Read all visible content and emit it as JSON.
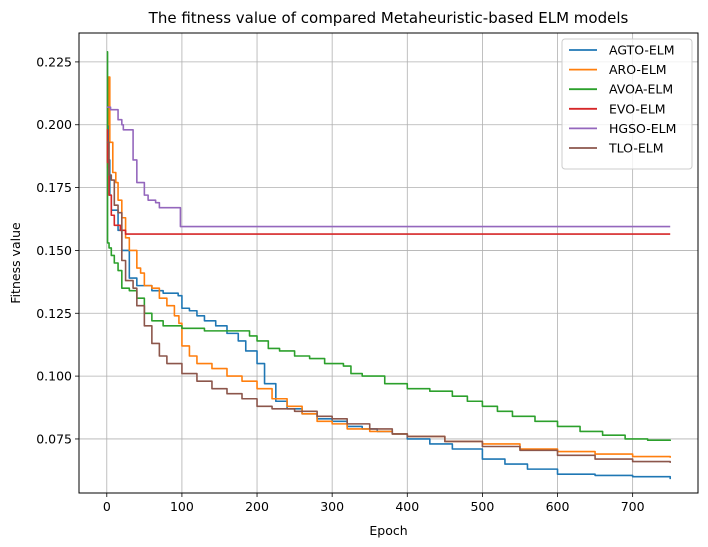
{
  "chart_data": {
    "type": "line",
    "title": "The fitness value of compared Metaheuristic-based ELM models",
    "xlabel": "Epoch",
    "ylabel": "Fitness value",
    "xlim": [
      -37,
      787
    ],
    "ylim": [
      0.0535,
      0.2365
    ],
    "xticks": [
      0,
      100,
      200,
      300,
      400,
      500,
      600,
      700
    ],
    "yticks": [
      0.075,
      0.1,
      0.125,
      0.15,
      0.175,
      0.2,
      0.225
    ],
    "ytick_labels": [
      "0.075",
      "0.100",
      "0.125",
      "0.150",
      "0.175",
      "0.200",
      "0.225"
    ],
    "grid": true,
    "legend_position": "upper right",
    "series": [
      {
        "name": "AGTO-ELM",
        "color": "#1f77b4",
        "points": [
          [
            0,
            0.2
          ],
          [
            2,
            0.186
          ],
          [
            4,
            0.172
          ],
          [
            6,
            0.166
          ],
          [
            12,
            0.166
          ],
          [
            15,
            0.158
          ],
          [
            20,
            0.15
          ],
          [
            30,
            0.139
          ],
          [
            40,
            0.136
          ],
          [
            60,
            0.134
          ],
          [
            75,
            0.133
          ],
          [
            95,
            0.132
          ],
          [
            100,
            0.127
          ],
          [
            110,
            0.126
          ],
          [
            120,
            0.124
          ],
          [
            130,
            0.122
          ],
          [
            145,
            0.12
          ],
          [
            160,
            0.117
          ],
          [
            175,
            0.114
          ],
          [
            185,
            0.11
          ],
          [
            200,
            0.105
          ],
          [
            210,
            0.097
          ],
          [
            225,
            0.09
          ],
          [
            240,
            0.087
          ],
          [
            260,
            0.085
          ],
          [
            280,
            0.083
          ],
          [
            300,
            0.082
          ],
          [
            320,
            0.08
          ],
          [
            340,
            0.079
          ],
          [
            360,
            0.078
          ],
          [
            380,
            0.077
          ],
          [
            400,
            0.075
          ],
          [
            430,
            0.073
          ],
          [
            460,
            0.071
          ],
          [
            500,
            0.067
          ],
          [
            530,
            0.065
          ],
          [
            560,
            0.063
          ],
          [
            600,
            0.061
          ],
          [
            650,
            0.0605
          ],
          [
            700,
            0.06
          ],
          [
            750,
            0.059
          ]
        ]
      },
      {
        "name": "ARO-ELM",
        "color": "#ff7f0e",
        "points": [
          [
            0,
            0.183
          ],
          [
            1,
            0.2
          ],
          [
            2,
            0.219
          ],
          [
            4,
            0.193
          ],
          [
            8,
            0.181
          ],
          [
            12,
            0.177
          ],
          [
            15,
            0.17
          ],
          [
            20,
            0.163
          ],
          [
            25,
            0.155
          ],
          [
            30,
            0.15
          ],
          [
            40,
            0.143
          ],
          [
            45,
            0.141
          ],
          [
            50,
            0.136
          ],
          [
            60,
            0.135
          ],
          [
            70,
            0.131
          ],
          [
            80,
            0.128
          ],
          [
            90,
            0.124
          ],
          [
            96,
            0.121
          ],
          [
            100,
            0.112
          ],
          [
            110,
            0.108
          ],
          [
            120,
            0.105
          ],
          [
            140,
            0.103
          ],
          [
            160,
            0.1
          ],
          [
            180,
            0.098
          ],
          [
            200,
            0.095
          ],
          [
            220,
            0.091
          ],
          [
            240,
            0.088
          ],
          [
            260,
            0.085
          ],
          [
            280,
            0.082
          ],
          [
            300,
            0.081
          ],
          [
            320,
            0.079
          ],
          [
            350,
            0.078
          ],
          [
            380,
            0.077
          ],
          [
            400,
            0.076
          ],
          [
            450,
            0.074
          ],
          [
            500,
            0.073
          ],
          [
            550,
            0.071
          ],
          [
            600,
            0.07
          ],
          [
            650,
            0.069
          ],
          [
            700,
            0.068
          ],
          [
            750,
            0.0675
          ]
        ]
      },
      {
        "name": "AVOA-ELM",
        "color": "#2ca02c",
        "points": [
          [
            0,
            0.229
          ],
          [
            1,
            0.153
          ],
          [
            3,
            0.151
          ],
          [
            6,
            0.148
          ],
          [
            10,
            0.145
          ],
          [
            15,
            0.142
          ],
          [
            20,
            0.135
          ],
          [
            30,
            0.134
          ],
          [
            40,
            0.131
          ],
          [
            50,
            0.125
          ],
          [
            60,
            0.122
          ],
          [
            75,
            0.12
          ],
          [
            100,
            0.119
          ],
          [
            130,
            0.118
          ],
          [
            150,
            0.118
          ],
          [
            180,
            0.118
          ],
          [
            190,
            0.116
          ],
          [
            200,
            0.114
          ],
          [
            215,
            0.111
          ],
          [
            230,
            0.11
          ],
          [
            250,
            0.108
          ],
          [
            270,
            0.107
          ],
          [
            290,
            0.105
          ],
          [
            315,
            0.104
          ],
          [
            325,
            0.101
          ],
          [
            340,
            0.1
          ],
          [
            370,
            0.097
          ],
          [
            400,
            0.095
          ],
          [
            430,
            0.094
          ],
          [
            460,
            0.092
          ],
          [
            480,
            0.09
          ],
          [
            500,
            0.088
          ],
          [
            520,
            0.086
          ],
          [
            540,
            0.084
          ],
          [
            570,
            0.082
          ],
          [
            600,
            0.08
          ],
          [
            630,
            0.078
          ],
          [
            660,
            0.0765
          ],
          [
            690,
            0.075
          ],
          [
            720,
            0.0745
          ],
          [
            750,
            0.0742
          ]
        ]
      },
      {
        "name": "EVO-ELM",
        "color": "#d62728",
        "points": [
          [
            0,
            0.198
          ],
          [
            1,
            0.185
          ],
          [
            3,
            0.172
          ],
          [
            6,
            0.164
          ],
          [
            10,
            0.16
          ],
          [
            18,
            0.158
          ],
          [
            25,
            0.1565
          ],
          [
            750,
            0.1565
          ]
        ]
      },
      {
        "name": "HGSO-ELM",
        "color": "#9467bd",
        "points": [
          [
            0,
            0.207
          ],
          [
            5,
            0.206
          ],
          [
            15,
            0.202
          ],
          [
            20,
            0.2
          ],
          [
            22,
            0.198
          ],
          [
            35,
            0.186
          ],
          [
            40,
            0.177
          ],
          [
            50,
            0.172
          ],
          [
            55,
            0.17
          ],
          [
            65,
            0.169
          ],
          [
            70,
            0.167
          ],
          [
            95,
            0.167
          ],
          [
            98,
            0.1595
          ],
          [
            750,
            0.1595
          ]
        ]
      },
      {
        "name": "TLO-ELM",
        "color": "#8c564b",
        "points": [
          [
            0,
            0.193
          ],
          [
            3,
            0.18
          ],
          [
            6,
            0.178
          ],
          [
            10,
            0.168
          ],
          [
            15,
            0.165
          ],
          [
            20,
            0.146
          ],
          [
            25,
            0.138
          ],
          [
            35,
            0.135
          ],
          [
            40,
            0.128
          ],
          [
            50,
            0.12
          ],
          [
            60,
            0.113
          ],
          [
            70,
            0.108
          ],
          [
            80,
            0.105
          ],
          [
            100,
            0.101
          ],
          [
            120,
            0.098
          ],
          [
            140,
            0.095
          ],
          [
            160,
            0.093
          ],
          [
            180,
            0.091
          ],
          [
            200,
            0.088
          ],
          [
            220,
            0.087
          ],
          [
            250,
            0.086
          ],
          [
            280,
            0.084
          ],
          [
            300,
            0.083
          ],
          [
            320,
            0.081
          ],
          [
            350,
            0.079
          ],
          [
            380,
            0.077
          ],
          [
            400,
            0.076
          ],
          [
            450,
            0.074
          ],
          [
            500,
            0.072
          ],
          [
            550,
            0.0705
          ],
          [
            600,
            0.0685
          ],
          [
            650,
            0.067
          ],
          [
            700,
            0.066
          ],
          [
            750,
            0.0655
          ]
        ]
      }
    ]
  }
}
